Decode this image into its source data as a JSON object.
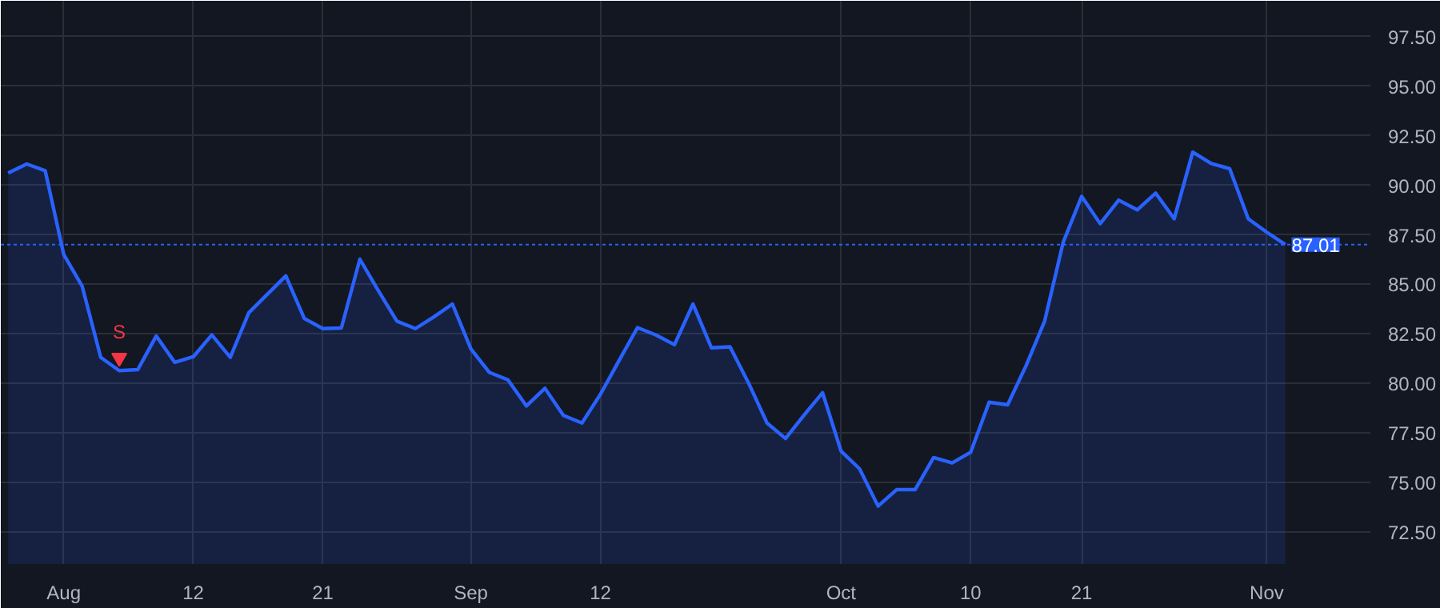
{
  "chart_data": {
    "type": "area",
    "categories": [
      null,
      null,
      null,
      "Aug",
      null,
      null,
      null,
      null,
      null,
      null,
      "12",
      null,
      null,
      null,
      null,
      null,
      null,
      "21",
      null,
      null,
      null,
      null,
      null,
      null,
      null,
      "Sep",
      null,
      null,
      null,
      null,
      null,
      null,
      "12",
      null,
      null,
      null,
      null,
      null,
      null,
      null,
      null,
      null,
      null,
      null,
      null,
      "Oct",
      null,
      null,
      null,
      null,
      null,
      null,
      "10",
      null,
      null,
      null,
      null,
      null,
      "21",
      null,
      null,
      null,
      null,
      null,
      null,
      null,
      null,
      null,
      "Nov",
      null
    ],
    "series": [
      {
        "color": "#2962ff",
        "values": [
          90.62,
          91.07,
          90.73,
          86.51,
          84.9,
          81.32,
          80.65,
          80.7,
          82.4,
          81.07,
          81.35,
          82.45,
          81.32,
          83.57,
          84.5,
          85.43,
          83.28,
          82.77,
          82.8,
          86.27,
          84.68,
          83.15,
          82.77,
          83.36,
          84.01,
          81.75,
          80.56,
          80.19,
          78.87,
          79.76,
          78.39,
          78.01,
          79.46,
          81.15,
          82.82,
          82.45,
          81.96,
          84.01,
          81.8,
          81.85,
          80.03,
          78.01,
          77.23,
          78.41,
          79.54,
          76.59,
          75.7,
          73.82,
          74.65,
          74.65,
          76.27,
          76.0,
          76.53,
          79.06,
          78.93,
          80.91,
          83.15,
          87.12,
          89.44,
          88.06,
          89.25,
          88.76,
          89.6,
          88.31,
          91.67,
          91.1,
          90.83,
          88.31,
          87.63,
          87.01
        ]
      },
      {
        "name": "S",
        "type": "scatter",
        "marker": "triangle",
        "color": "#f23645",
        "values": [
          null,
          null,
          null,
          null,
          null,
          null,
          81.3,
          null,
          null,
          null,
          null,
          null,
          null,
          null,
          null,
          null,
          null,
          null,
          null,
          null,
          null,
          null,
          null,
          null,
          null,
          null,
          null,
          null,
          null,
          null,
          null,
          null,
          null,
          null,
          null,
          null,
          null,
          null,
          null,
          null,
          null,
          null,
          null,
          null,
          null,
          null,
          null,
          null,
          null,
          null,
          null,
          null,
          null,
          null,
          null,
          null,
          null,
          null,
          null,
          null,
          null,
          null,
          null,
          null,
          null,
          null,
          null,
          null,
          null,
          null
        ]
      }
    ],
    "ylim": [
      70.9,
      99.3
    ],
    "yticks": [
      {
        "value": 72.5,
        "label": "72.50"
      },
      {
        "value": 75,
        "label": "75.00"
      },
      {
        "value": 77.5,
        "label": "77.50"
      },
      {
        "value": 80,
        "label": "80.00"
      },
      {
        "value": 82.5,
        "label": "82.50"
      },
      {
        "value": 85,
        "label": "85.00"
      },
      {
        "value": 87.5,
        "label": "87.50"
      },
      {
        "value": 90,
        "label": "90.00"
      },
      {
        "value": 92.5,
        "label": "92.50"
      },
      {
        "value": 95,
        "label": "95.00"
      },
      {
        "value": 97.5,
        "label": "97.50"
      }
    ],
    "ref_lines": [
      {
        "axis": "y",
        "value": 87.01,
        "label": "87.01",
        "color": "#2962ff",
        "line_style": "dotted"
      }
    ],
    "grid": true
  }
}
